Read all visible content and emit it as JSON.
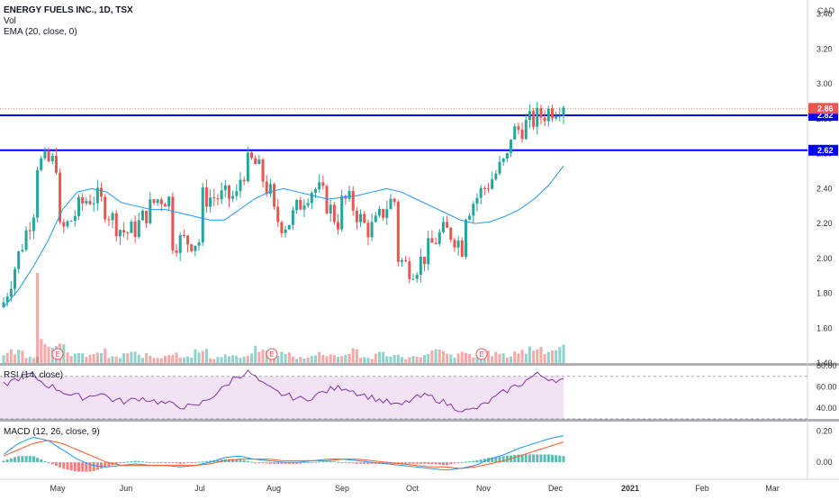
{
  "header": {
    "symbol": "ENERGY FUELS INC., 1D, TSX",
    "vol": "Vol",
    "ema": "EMA (20, close, 0)",
    "currency": "CAD"
  },
  "rsi_label": "RSI (14, close)",
  "macd_label": "MACD (12, 26, close, 9)",
  "colors": {
    "up": "#26a69a",
    "down": "#ef5350",
    "ema": "#2196f3",
    "hline": "#0000ff",
    "rsi": "#7b1fa2",
    "macd": "#2196f3",
    "signal": "#ff5722"
  },
  "chart_data": [
    {
      "type": "candlestick",
      "title": "ENERGY FUELS INC., 1D, TSX",
      "x_ticks": [
        "May",
        "Jun",
        "Jul",
        "Aug",
        "Sep",
        "Oct",
        "Nov",
        "Dec",
        "2021",
        "Feb",
        "Mar"
      ],
      "y_ticks": [
        "1.40",
        "1.60",
        "1.80",
        "2.00",
        "2.20",
        "2.40",
        "2.60",
        "2.80",
        "3.00",
        "3.20",
        "3.40"
      ],
      "ylim": [
        1.4,
        3.44
      ],
      "horizontal_lines": [
        {
          "value": 2.82,
          "label": "2.82"
        },
        {
          "value": 2.62,
          "label": "2.62"
        }
      ],
      "last_price_label": "2.86",
      "earnings_markers": [
        "E",
        "E",
        "E"
      ],
      "series": [
        {
          "name": "EMA (20, close, 0)",
          "values": [
            1.72,
            1.82,
            1.95,
            2.1,
            2.28,
            2.38,
            2.4,
            2.38,
            2.32,
            2.3,
            2.28,
            2.28,
            2.26,
            2.24,
            2.22,
            2.22,
            2.28,
            2.34,
            2.38,
            2.4,
            2.38,
            2.36,
            2.34,
            2.35,
            2.36,
            2.38,
            2.4,
            2.38,
            2.34,
            2.3,
            2.26,
            2.22,
            2.2,
            2.21,
            2.24,
            2.28,
            2.34,
            2.42,
            2.53
          ]
        }
      ]
    },
    {
      "type": "bar",
      "title": "Vol",
      "values": [
        0.5,
        0.6,
        0.4,
        1.2,
        0.8,
        0.5,
        0.4,
        0.6,
        0.3,
        0.5,
        0.4,
        0.3,
        0.5,
        0.4,
        0.6,
        0.3,
        0.4,
        0.3,
        0.7,
        0.6,
        0.5,
        0.3,
        0.4,
        0.5,
        0.4,
        0.6,
        0.3,
        0.5,
        0.4,
        0.3,
        0.4,
        0.6,
        0.4,
        0.5,
        0.3,
        0.5,
        0.4,
        0.6,
        0.8,
        0.7,
        1.0
      ]
    },
    {
      "type": "line",
      "title": "RSI (14, close)",
      "y_ticks": [
        "40.00",
        "60.00",
        "80.00"
      ],
      "ylim": [
        30,
        80
      ],
      "band": [
        30,
        70
      ],
      "values": [
        62,
        68,
        72,
        63,
        58,
        52,
        50,
        55,
        48,
        46,
        50,
        47,
        44,
        42,
        41,
        49,
        58,
        70,
        74,
        62,
        55,
        51,
        48,
        53,
        58,
        60,
        54,
        50,
        46,
        42,
        49,
        52,
        47,
        41,
        37,
        42,
        50,
        58,
        64,
        72,
        68,
        66
      ]
    },
    {
      "type": "line",
      "title": "MACD (12, 26, close, 9)",
      "y_ticks": [
        "0.00",
        "0.20"
      ],
      "ylim": [
        -0.08,
        0.26
      ],
      "series": [
        {
          "name": "MACD",
          "values": [
            0.05,
            0.12,
            0.16,
            0.14,
            0.08,
            0.02,
            -0.02,
            -0.03,
            -0.02,
            -0.01,
            -0.02,
            -0.02,
            -0.03,
            -0.02,
            0.0,
            0.03,
            0.04,
            0.02,
            0.01,
            0.0,
            0.0,
            0.01,
            0.02,
            0.02,
            0.01,
            0.0,
            -0.01,
            -0.02,
            -0.03,
            -0.04,
            -0.05,
            -0.04,
            -0.02,
            0.02,
            0.05,
            0.09,
            0.12,
            0.15,
            0.17
          ]
        },
        {
          "name": "Signal",
          "values": [
            0.04,
            0.08,
            0.12,
            0.14,
            0.12,
            0.08,
            0.04,
            0.0,
            -0.02,
            -0.02,
            -0.02,
            -0.02,
            -0.02,
            -0.02,
            -0.01,
            0.01,
            0.02,
            0.02,
            0.02,
            0.01,
            0.01,
            0.01,
            0.01,
            0.02,
            0.02,
            0.01,
            0.0,
            -0.01,
            -0.02,
            -0.03,
            -0.03,
            -0.04,
            -0.03,
            -0.01,
            0.01,
            0.04,
            0.07,
            0.1,
            0.13
          ]
        }
      ]
    }
  ]
}
